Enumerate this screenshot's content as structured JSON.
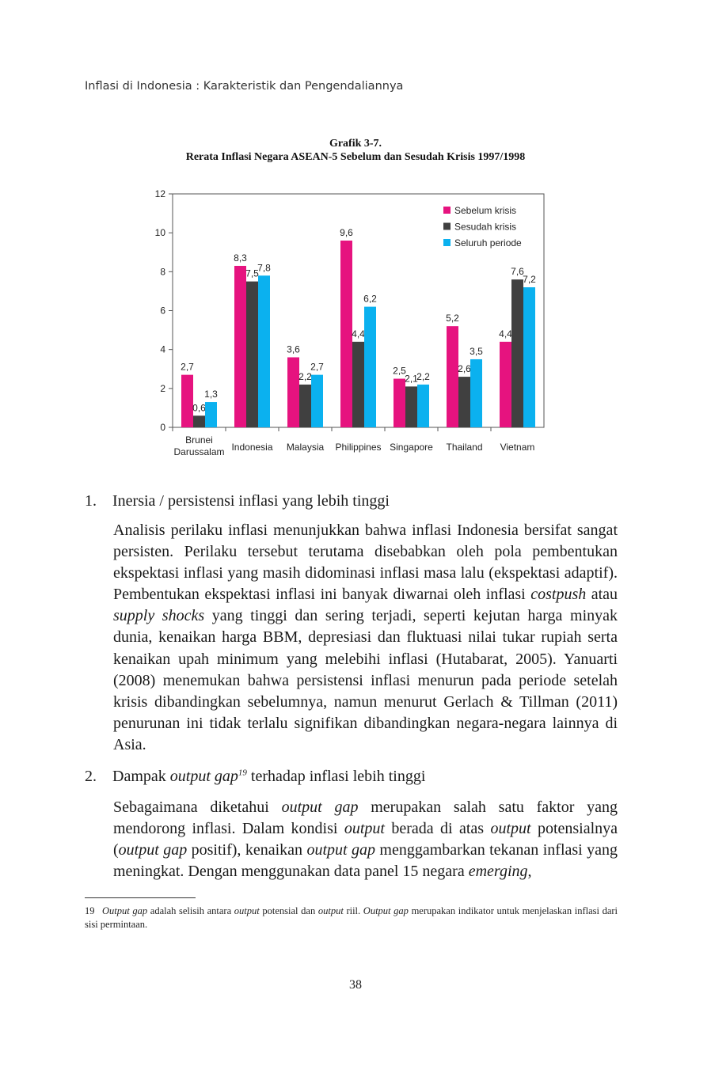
{
  "header": {
    "running_title": "Inflasi di Indonesia : Karakteristik dan Pengendaliannya"
  },
  "figure": {
    "number": "Grafik 3-7.",
    "title": "Rerata Inflasi Negara ASEAN-5 Sebelum dan Sesudah Krisis 1997/1998"
  },
  "chart_data": {
    "type": "bar",
    "categories": [
      "Brunei Darussalam",
      "Indonesia",
      "Malaysia",
      "Philippines",
      "Singapore",
      "Thailand",
      "Vietnam"
    ],
    "category_lines": [
      [
        "Brunei",
        "Darussalam"
      ],
      [
        "Indonesia"
      ],
      [
        "Malaysia"
      ],
      [
        "Philippines"
      ],
      [
        "Singapore"
      ],
      [
        "Thailand"
      ],
      [
        "Vietnam"
      ]
    ],
    "series": [
      {
        "name": "Sebelum krisis",
        "color": "#e6137f",
        "values": [
          2.7,
          8.3,
          3.6,
          9.6,
          2.5,
          5.2,
          4.4
        ],
        "labels": [
          "2,7",
          "8,3",
          "3,6",
          "9,6",
          "2,5",
          "5,2",
          "4,4"
        ]
      },
      {
        "name": "Sesudah krisis",
        "color": "#404040",
        "values": [
          0.6,
          7.5,
          2.2,
          4.4,
          2.1,
          2.6,
          7.6
        ],
        "labels": [
          "0,6",
          "7,5",
          "2,2",
          "4,4",
          "2,1",
          "2,6",
          "7,6"
        ]
      },
      {
        "name": "Seluruh periode",
        "color": "#0bb1ef",
        "values": [
          1.3,
          7.8,
          2.7,
          6.2,
          2.2,
          3.5,
          7.2
        ],
        "labels": [
          "1,3",
          "7,8",
          "2,7",
          "6,2",
          "2,2",
          "3,5",
          "7,2"
        ]
      }
    ],
    "ylim": [
      0,
      12
    ],
    "yticks": [
      "0",
      "2",
      "4",
      "6",
      "8",
      "10",
      "12"
    ],
    "xlabel": "",
    "ylabel": "",
    "legend": "top-right",
    "grid": false
  },
  "item1": {
    "number": "1.",
    "heading": "Inersia / persistensi inflasi yang lebih tinggi",
    "p1": "Analisis perilaku inflasi menunjukkan bahwa inflasi Indonesia bersifat sangat persisten. Perilaku tersebut terutama disebabkan oleh pola pembentukan ekspektasi inflasi yang masih didominasi inflasi masa lalu (ekspektasi adaptif). Pembentukan ekspektasi inflasi ini banyak diwarnai oleh inflasi",
    "em1": "costpush",
    "p2": "atau",
    "em2": "supply shocks",
    "p3": "yang tinggi dan sering terjadi, seperti kejutan harga minyak dunia, kenaikan harga BBM, depresiasi dan fluktuasi nilai tukar rupiah serta kenaikan upah minimum yang melebihi inflasi (Hutabarat, 2005). Yanuarti (2008) menemukan bahwa persistensi inflasi menurun pada periode setelah krisis dibandingkan sebelumnya, namun menurut Gerlach & Tillman (2011) penurunan ini tidak terlalu signifikan dibandingkan negara-negara lainnya di Asia."
  },
  "item2": {
    "number": "2.",
    "h_pre": "Dampak",
    "h_em": "output gap",
    "h_sup": "19",
    "h_post": "terhadap inflasi lebih tinggi",
    "s1": "Sebagaimana diketahui",
    "e1": "output gap",
    "s2": "merupakan salah satu faktor yang mendorong inflasi. Dalam kondisi",
    "e2": "output",
    "s3": "berada di atas",
    "e3": "output",
    "s4": "potensialnya (",
    "e4": "output gap",
    "s5": "positif), kenaikan",
    "e5": "output gap",
    "s6": "menggambarkan tekanan inflasi yang meningkat. Dengan menggunakan data panel 15 negara",
    "e6": "emerging",
    "s7": ","
  },
  "footnote": {
    "number": "19",
    "em1": "Output gap",
    "t1": "adalah selisih antara",
    "em2": "output",
    "t2": "potensial dan",
    "em3": "output",
    "t3": "riil.",
    "em4": "Output gap",
    "t4": "merupakan indikator untuk menjelaskan inflasi dari sisi permintaan."
  },
  "page_number": "38"
}
